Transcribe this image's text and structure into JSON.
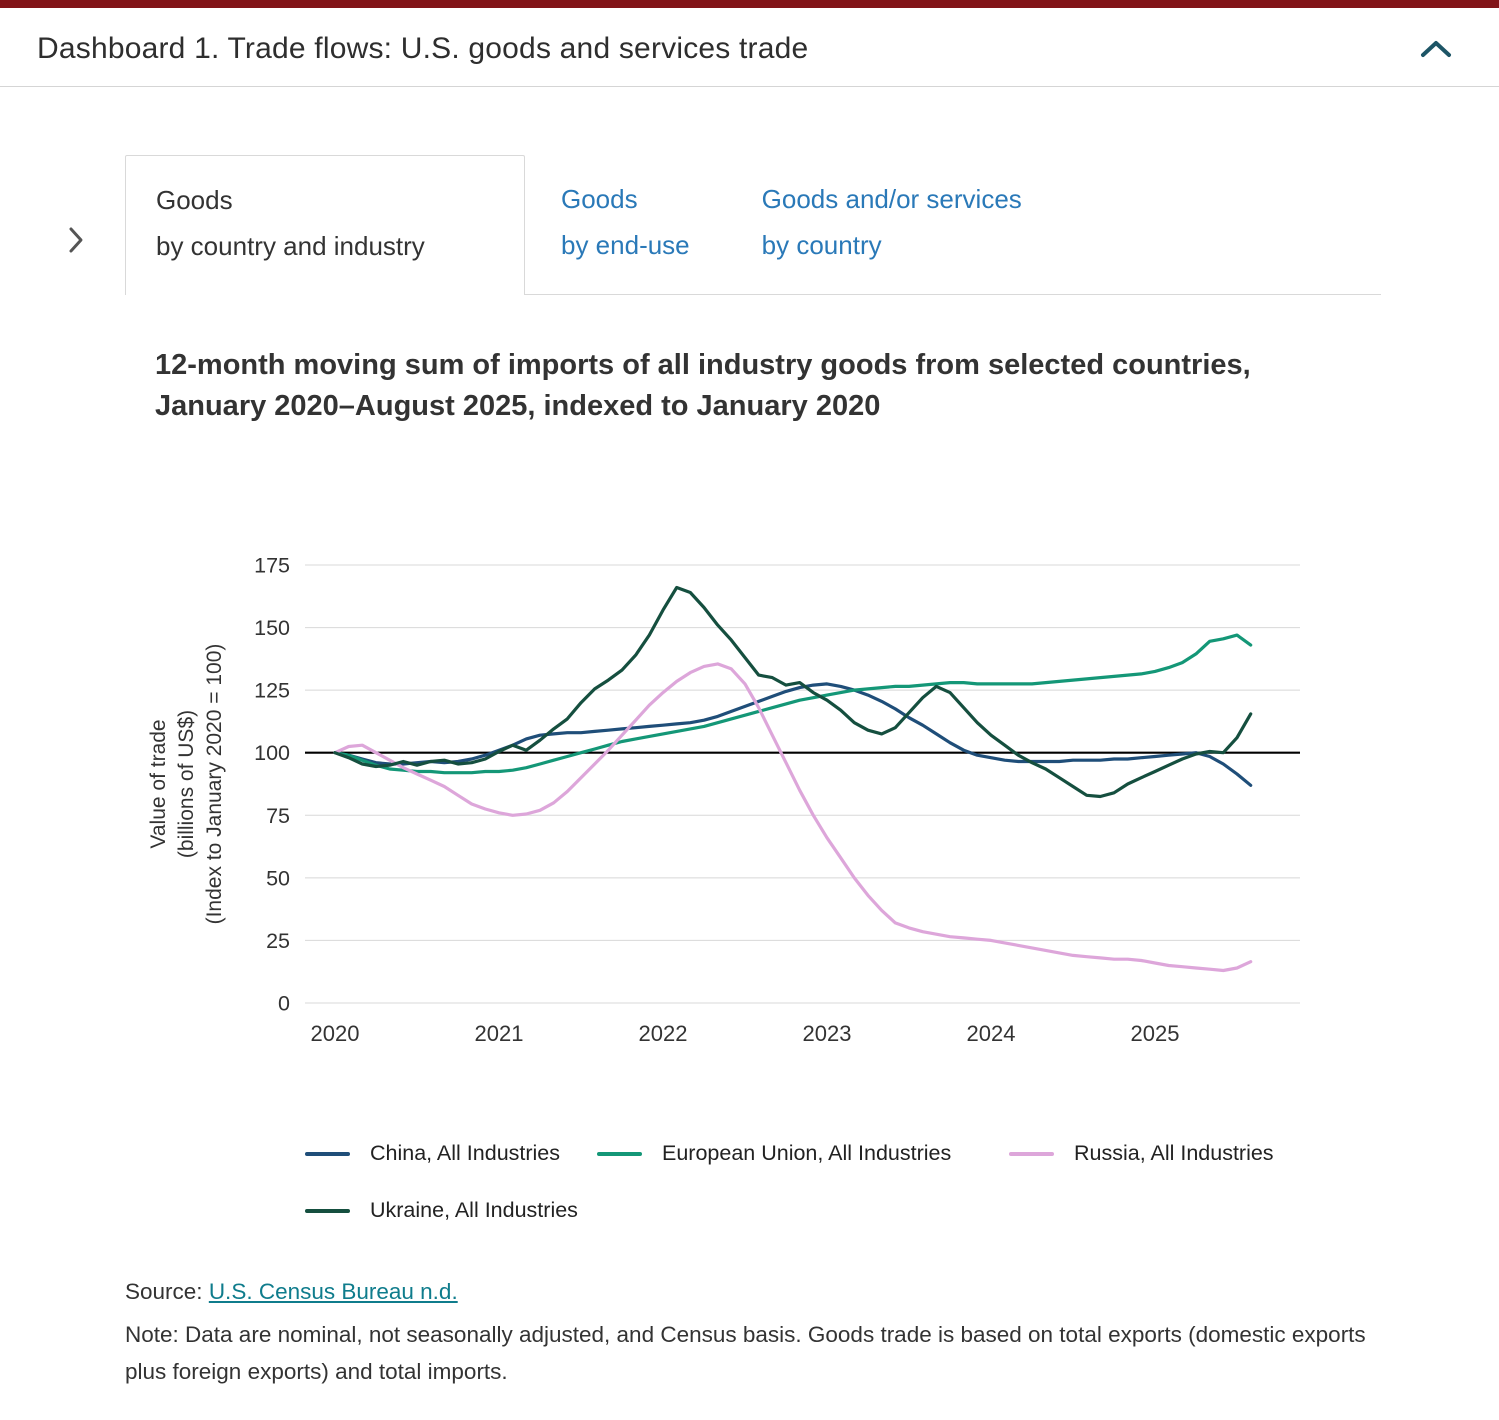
{
  "header": {
    "title": "Dashboard 1. Trade flows: U.S. goods and services trade"
  },
  "icons": {
    "collapse": "chevron-up-icon",
    "expand": "chevron-right-icon"
  },
  "colors": {
    "top_bar": "#821418",
    "tab_link": "#2a79b8",
    "source_link": "#0f7c8c",
    "header_chevron": "#1d5566"
  },
  "tabs": [
    {
      "line1": "Goods",
      "line2": "by country and industry",
      "active": true
    },
    {
      "line1": "Goods",
      "line2": "by end-use",
      "active": false
    },
    {
      "line1": "Goods and/or services",
      "line2": "by country",
      "active": false
    }
  ],
  "chart_data": {
    "type": "line",
    "title": "12-month moving sum of imports of all industry goods from selected countries, January 2020–August 2025, indexed to January 2020",
    "ylabel_lines": [
      "Value of trade",
      "(billions of US$)",
      "(Index to January 2020 = 100)"
    ],
    "x_start": "2020-01",
    "x_end": "2025-08",
    "x_tick_labels": [
      "2020",
      "2021",
      "2022",
      "2023",
      "2024",
      "2025"
    ],
    "y_ticks": [
      0,
      25,
      50,
      75,
      100,
      125,
      150,
      175
    ],
    "ylim": [
      0,
      175
    ],
    "reference_line_y": 100,
    "grid": true,
    "legend_position": "bottom",
    "series": [
      {
        "name": "China, All Industries",
        "color": "#1f4e79",
        "values": [
          100,
          99,
          97.5,
          96,
          95.5,
          95.5,
          96,
          96.5,
          96,
          96.5,
          97.5,
          99,
          101,
          103,
          105.5,
          107,
          107.5,
          108,
          108,
          108.5,
          109,
          109.5,
          110,
          110.5,
          111,
          111.5,
          112,
          113,
          114.5,
          116.5,
          118.5,
          120.5,
          122.5,
          124.5,
          126,
          127,
          127.5,
          126.5,
          125,
          123,
          120.5,
          117.5,
          114,
          111,
          107.5,
          104,
          101,
          99,
          98,
          97,
          96.5,
          96.5,
          96.5,
          96.5,
          97,
          97,
          97,
          97.5,
          97.5,
          98,
          98.5,
          99,
          99.5,
          100,
          98.5,
          95.5,
          91.5,
          87
        ]
      },
      {
        "name": "European Union, All Industries",
        "color": "#149777",
        "values": [
          100,
          99,
          97,
          95,
          93.5,
          93,
          92.5,
          92.5,
          92,
          92,
          92,
          92.5,
          92.5,
          93,
          94,
          95.5,
          97,
          98.5,
          100,
          101.5,
          103,
          104.5,
          105.5,
          106.5,
          107.5,
          108.5,
          109.5,
          110.5,
          112,
          113.5,
          115,
          116.5,
          118,
          119.5,
          121,
          122,
          123,
          124,
          125,
          125.5,
          126,
          126.5,
          126.5,
          127,
          127.5,
          128,
          128,
          127.5,
          127.5,
          127.5,
          127.5,
          127.5,
          128,
          128.5,
          129,
          129.5,
          130,
          130.5,
          131,
          131.5,
          132.5,
          134,
          136,
          139.5,
          144.5,
          145.5,
          147,
          143
        ]
      },
      {
        "name": "Russia, All Industries",
        "color": "#dda6da",
        "values": [
          100,
          102.5,
          103,
          100,
          97,
          94,
          91.5,
          89,
          86.5,
          83,
          79.5,
          77.5,
          76,
          75,
          75.5,
          77,
          80,
          84.5,
          90,
          95.5,
          101,
          107,
          113,
          119,
          124,
          128.5,
          132,
          134.5,
          135.5,
          133.5,
          127.5,
          118,
          107,
          96,
          85,
          75,
          66,
          58,
          50,
          43,
          37,
          32,
          30,
          28.5,
          27.5,
          26.5,
          26,
          25.5,
          25,
          24,
          23,
          22,
          21,
          20,
          19,
          18.5,
          18,
          17.5,
          17.5,
          17,
          16,
          15,
          14.5,
          14,
          13.5,
          13,
          14,
          16.5
        ]
      },
      {
        "name": "Ukraine, All Industries",
        "color": "#154f3f",
        "values": [
          100,
          98,
          95.5,
          94.5,
          95,
          96.5,
          95,
          96.5,
          97,
          95.5,
          96,
          97.5,
          100.5,
          103,
          101,
          105,
          109.5,
          113.5,
          120,
          125.5,
          129,
          133,
          139,
          147,
          157,
          166,
          164,
          158,
          151,
          145,
          138,
          131,
          130,
          127,
          128,
          124,
          121,
          117,
          112,
          109,
          107.5,
          110,
          116,
          122,
          126.5,
          124,
          118,
          112,
          107,
          103,
          99,
          96,
          93.5,
          90,
          86.5,
          83,
          82.5,
          84,
          87.5,
          90,
          92.5,
          95,
          97.5,
          99.5,
          100.5,
          100,
          106,
          115.5
        ]
      }
    ]
  },
  "footer": {
    "source_label": "Source:",
    "source_link": "U.S. Census Bureau n.d.",
    "note": "Note: Data are nominal, not seasonally adjusted, and Census basis. Goods trade is based on total exports (domestic exports plus foreign exports) and total imports."
  }
}
